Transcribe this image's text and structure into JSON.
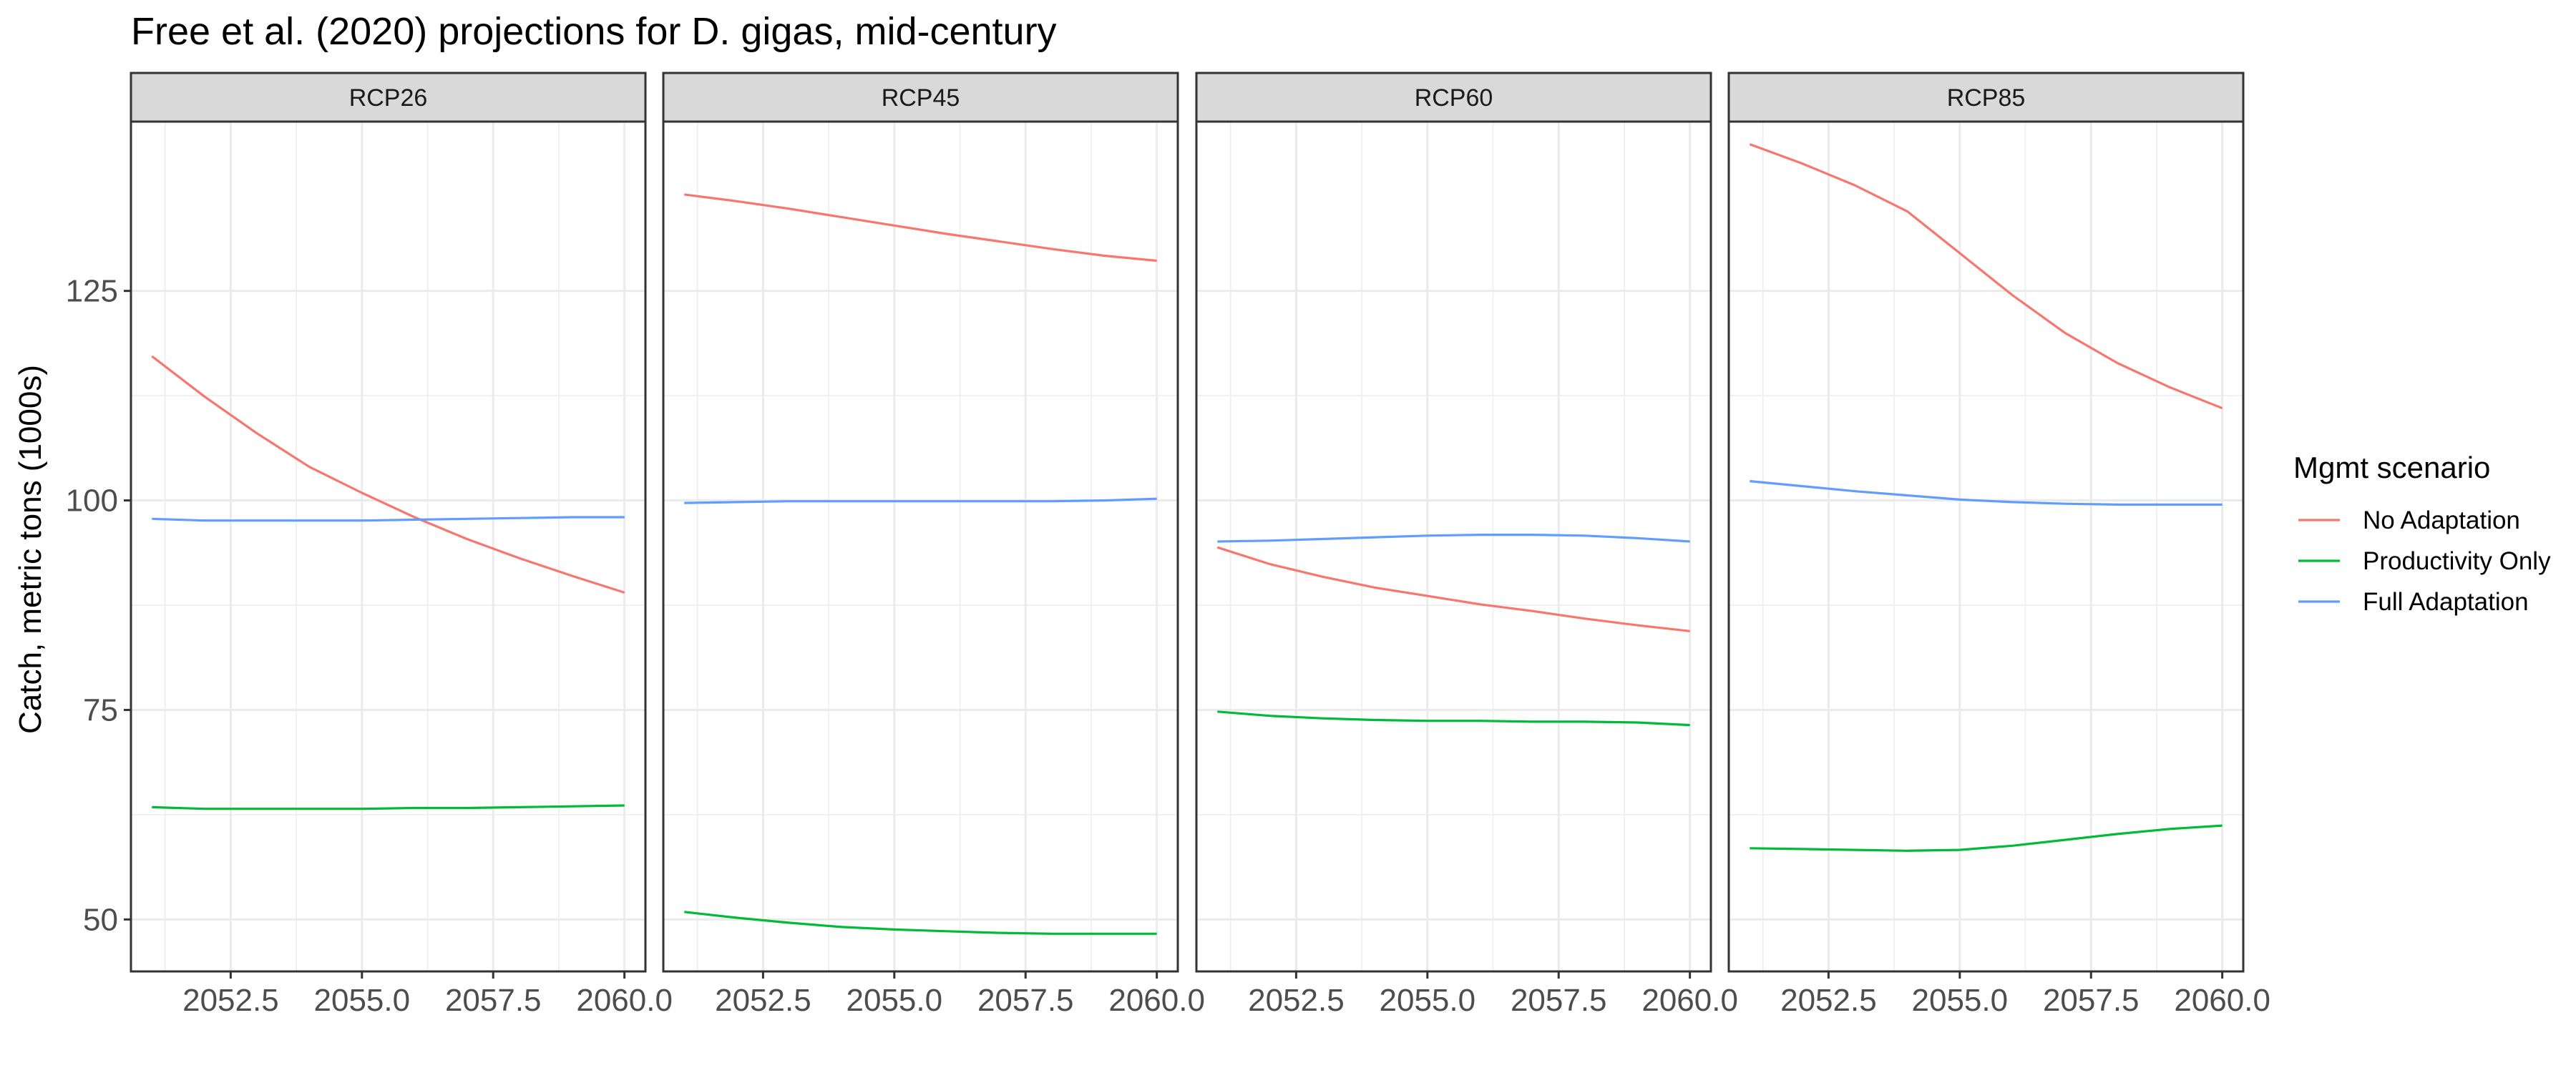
{
  "chart_data": {
    "type": "line",
    "title": "Free et al. (2020) projections for D. gigas, mid-century",
    "ylabel": "Catch, metric tons (1000s)",
    "xlabel": "",
    "xlim": [
      2050.6,
      2060.4
    ],
    "ylim": [
      43.8,
      145.2
    ],
    "x_ticks": [
      2052.5,
      2055.0,
      2057.5,
      2060.0
    ],
    "x_tick_labels": [
      "2052.5",
      "2055.0",
      "2057.5",
      "2060.0"
    ],
    "y_ticks": [
      50,
      75,
      100,
      125
    ],
    "y_tick_labels": [
      "50",
      "75",
      "100",
      "125"
    ],
    "grid": true,
    "legend_title": "Mgmt scenario",
    "legend_placement": "right",
    "series_names": [
      "No Adaptation",
      "Productivity Only",
      "Full Adaptation"
    ],
    "series_colors": [
      "#F8766D",
      "#00BA38",
      "#619CFF"
    ],
    "x": [
      2051,
      2052,
      2053,
      2054,
      2055,
      2056,
      2057,
      2058,
      2059,
      2060
    ],
    "panels": [
      {
        "label": "RCP26",
        "series": [
          {
            "name": "No Adaptation",
            "values": [
              117.2,
              112.4,
              108.0,
              104.0,
              100.9,
              98.0,
              95.4,
              93.1,
              91.0,
              89.0
            ]
          },
          {
            "name": "Productivity Only",
            "values": [
              63.4,
              63.2,
              63.2,
              63.2,
              63.2,
              63.3,
              63.3,
              63.4,
              63.5,
              63.6
            ]
          },
          {
            "name": "Full Adaptation",
            "values": [
              97.8,
              97.6,
              97.6,
              97.6,
              97.6,
              97.7,
              97.8,
              97.9,
              98.0,
              98.0
            ]
          }
        ]
      },
      {
        "label": "RCP45",
        "series": [
          {
            "name": "No Adaptation",
            "values": [
              136.5,
              135.7,
              134.8,
              133.8,
              132.8,
              131.8,
              130.9,
              130.0,
              129.2,
              128.6
            ]
          },
          {
            "name": "Productivity Only",
            "values": [
              50.9,
              50.2,
              49.6,
              49.1,
              48.8,
              48.6,
              48.4,
              48.3,
              48.3,
              48.3
            ]
          },
          {
            "name": "Full Adaptation",
            "values": [
              99.7,
              99.8,
              99.9,
              99.9,
              99.9,
              99.9,
              99.9,
              99.9,
              100.0,
              100.2
            ]
          }
        ]
      },
      {
        "label": "RCP60",
        "series": [
          {
            "name": "No Adaptation",
            "values": [
              94.4,
              92.4,
              90.9,
              89.6,
              88.6,
              87.6,
              86.8,
              85.9,
              85.1,
              84.4
            ]
          },
          {
            "name": "Productivity Only",
            "values": [
              74.8,
              74.3,
              74.0,
              73.8,
              73.7,
              73.7,
              73.6,
              73.6,
              73.5,
              73.2
            ]
          },
          {
            "name": "Full Adaptation",
            "values": [
              95.1,
              95.2,
              95.4,
              95.6,
              95.8,
              95.9,
              95.9,
              95.8,
              95.5,
              95.1
            ]
          }
        ]
      },
      {
        "label": "RCP85",
        "series": [
          {
            "name": "No Adaptation",
            "values": [
              142.5,
              140.2,
              137.6,
              134.5,
              129.5,
              124.5,
              120.0,
              116.4,
              113.5,
              111.0
            ]
          },
          {
            "name": "Productivity Only",
            "values": [
              58.5,
              58.4,
              58.3,
              58.2,
              58.3,
              58.8,
              59.5,
              60.2,
              60.8,
              61.2
            ]
          },
          {
            "name": "Full Adaptation",
            "values": [
              102.3,
              101.7,
              101.1,
              100.6,
              100.1,
              99.8,
              99.6,
              99.5,
              99.5,
              99.5
            ]
          }
        ]
      }
    ]
  }
}
